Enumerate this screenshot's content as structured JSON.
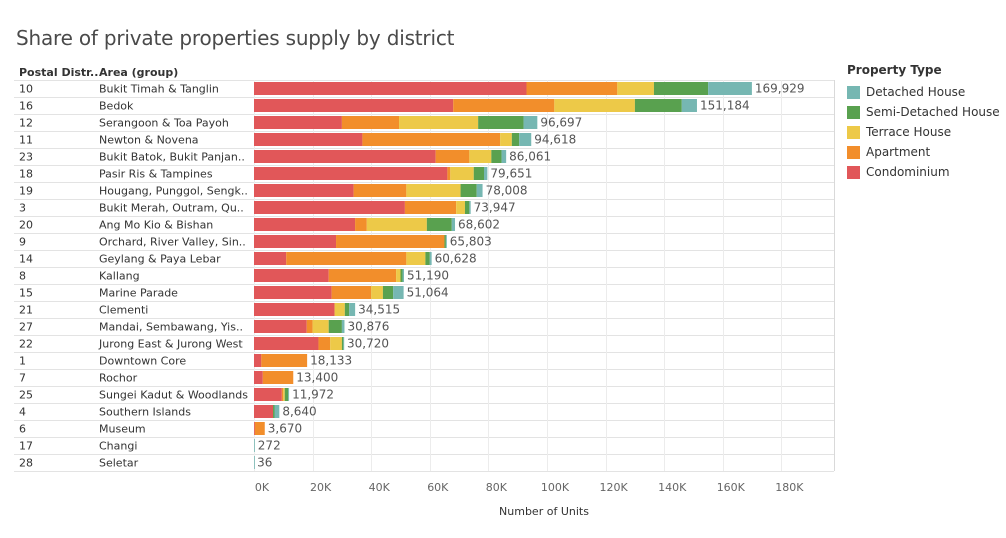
{
  "chart_data": {
    "type": "bar",
    "title": "Share of private properties supply by district",
    "row_headers": [
      "Postal Distr..",
      "Area (group)"
    ],
    "xlabel": "Number of Units",
    "xlim": [
      0,
      195000
    ],
    "xticks": [
      0,
      20000,
      40000,
      60000,
      80000,
      100000,
      120000,
      140000,
      160000,
      180000
    ],
    "xtick_labels": [
      "0K",
      "20K",
      "40K",
      "60K",
      "80K",
      "100K",
      "120K",
      "140K",
      "160K",
      "180K"
    ],
    "legend_title": "Property Type",
    "legend_position": "right",
    "stack_order": [
      "Condominium",
      "Apartment",
      "Terrace House",
      "Semi-Detached House",
      "Detached House"
    ],
    "legend_order": [
      "Detached House",
      "Semi-Detached House",
      "Terrace House",
      "Apartment",
      "Condominium"
    ],
    "colors": {
      "Condominium": "#e15759",
      "Apartment": "#f28e2b",
      "Terrace House": "#edc948",
      "Semi-Detached House": "#59a14f",
      "Detached House": "#76b7b2"
    },
    "rows": [
      {
        "district": "10",
        "area": "Bukit Timah & Tanglin",
        "total": "169,929",
        "values": [
          93000,
          31000,
          12500,
          18500,
          14929
        ]
      },
      {
        "district": "16",
        "area": "Bedok",
        "total": "151,184",
        "values": [
          68000,
          34500,
          27500,
          16000,
          5184
        ]
      },
      {
        "district": "12",
        "area": "Serangoon & Toa Payoh",
        "total": "96,697",
        "values": [
          30000,
          19500,
          27000,
          15500,
          4697
        ]
      },
      {
        "district": "11",
        "area": "Newton & Novena",
        "total": "94,618",
        "values": [
          37000,
          47000,
          4000,
          2500,
          4118
        ]
      },
      {
        "district": "23",
        "area": "Bukit Batok, Bukit Panjan..",
        "total": "86,061",
        "values": [
          62000,
          11500,
          7500,
          3500,
          1561
        ]
      },
      {
        "district": "18",
        "area": "Pasir Ris & Tampines",
        "total": "79,651",
        "values": [
          66000,
          1000,
          8000,
          3500,
          1151
        ]
      },
      {
        "district": "19",
        "area": "Hougang, Punggol, Sengk..",
        "total": "78,008",
        "values": [
          34000,
          18000,
          18500,
          5500,
          2008
        ]
      },
      {
        "district": "3",
        "area": "Bukit Merah, Outram, Qu..",
        "total": "73,947",
        "values": [
          51500,
          17500,
          3000,
          1500,
          447
        ]
      },
      {
        "district": "20",
        "area": "Ang Mo Kio & Bishan",
        "total": "68,602",
        "values": [
          34500,
          4000,
          20500,
          8500,
          1102
        ]
      },
      {
        "district": "9",
        "area": "Orchard, River Valley, Sin..",
        "total": "65,803",
        "values": [
          28000,
          37000,
          0,
          500,
          303
        ]
      },
      {
        "district": "14",
        "area": "Geylang & Paya Lebar",
        "total": "60,628",
        "values": [
          11000,
          41000,
          6500,
          1500,
          628
        ]
      },
      {
        "district": "8",
        "area": "Kallang",
        "total": "51,190",
        "values": [
          25500,
          23000,
          1500,
          690,
          500
        ]
      },
      {
        "district": "15",
        "area": "Marine Parade",
        "total": "51,064",
        "values": [
          26500,
          13500,
          4000,
          3500,
          3564
        ]
      },
      {
        "district": "21",
        "area": "Clementi",
        "total": "34,515",
        "values": [
          27500,
          0,
          3500,
          1500,
          2015
        ]
      },
      {
        "district": "27",
        "area": "Mandai, Sembawang, Yis..",
        "total": "30,876",
        "values": [
          18000,
          2000,
          5500,
          4500,
          876
        ]
      },
      {
        "district": "22",
        "area": "Jurong East & Jurong West",
        "total": "30,720",
        "values": [
          22000,
          4000,
          4000,
          500,
          220
        ]
      },
      {
        "district": "1",
        "area": "Downtown Core",
        "total": "18,133",
        "values": [
          2500,
          15633,
          0,
          0,
          0
        ]
      },
      {
        "district": "7",
        "area": "Rochor",
        "total": "13,400",
        "values": [
          3000,
          10400,
          0,
          0,
          0
        ]
      },
      {
        "district": "25",
        "area": "Sungei Kadut & Woodlands",
        "total": "11,972",
        "values": [
          9500,
          500,
          500,
          1200,
          272
        ]
      },
      {
        "district": "4",
        "area": "Southern Islands",
        "total": "8,640",
        "values": [
          6500,
          0,
          0,
          500,
          1640
        ]
      },
      {
        "district": "6",
        "area": "Museum",
        "total": "3,670",
        "values": [
          300,
          3370,
          0,
          0,
          0
        ]
      },
      {
        "district": "17",
        "area": "Changi",
        "total": "272",
        "values": [
          0,
          0,
          0,
          0,
          272
        ]
      },
      {
        "district": "28",
        "area": "Seletar",
        "total": "36",
        "values": [
          0,
          0,
          0,
          0,
          36
        ]
      }
    ]
  }
}
